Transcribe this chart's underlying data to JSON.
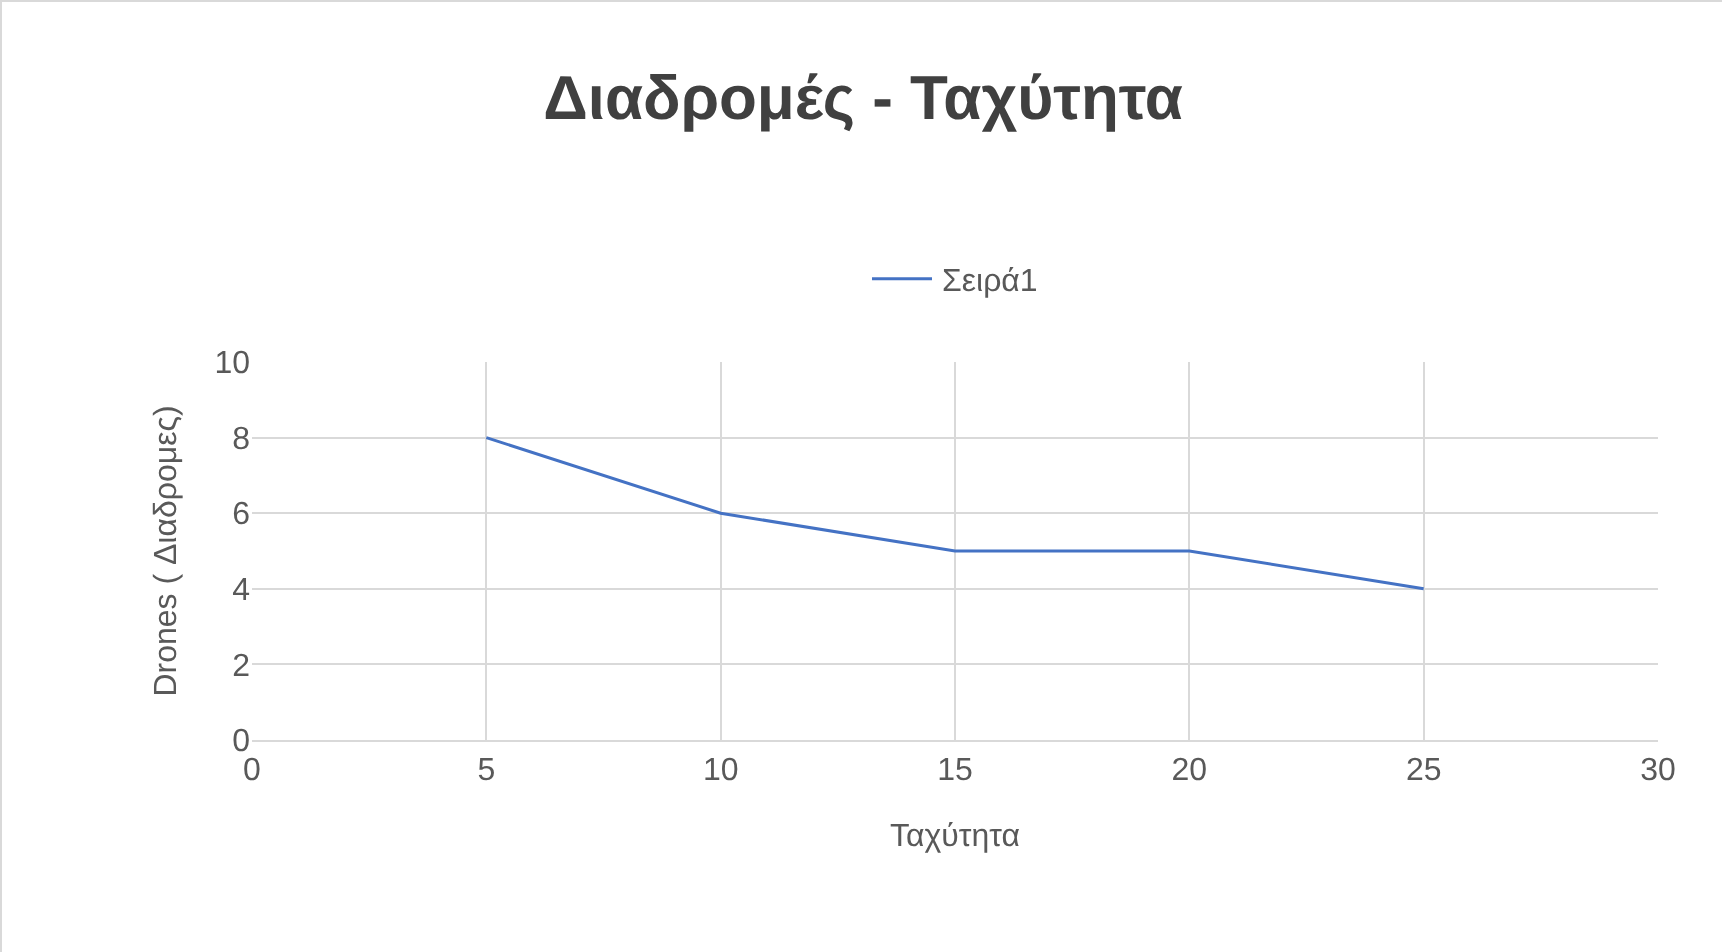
{
  "chart_data": {
    "type": "line",
    "title": "Διαδρομές - Ταχύτητα",
    "xlabel": "Ταχύτητα",
    "ylabel": "Drones ( Διαδρομες)",
    "x": [
      5,
      10,
      15,
      20,
      25
    ],
    "series": [
      {
        "name": "Σειρά1",
        "color": "#4472c4",
        "values": [
          8,
          6,
          5,
          5,
          4
        ]
      }
    ],
    "xlim": [
      0,
      30
    ],
    "xticks": [
      0,
      5,
      10,
      15,
      20,
      25,
      30
    ],
    "ylim": [
      0,
      10
    ],
    "yticks": [
      0,
      2,
      4,
      6,
      8,
      10
    ],
    "grid": true,
    "legend": "top",
    "marker": "none",
    "line_style": "solid"
  }
}
